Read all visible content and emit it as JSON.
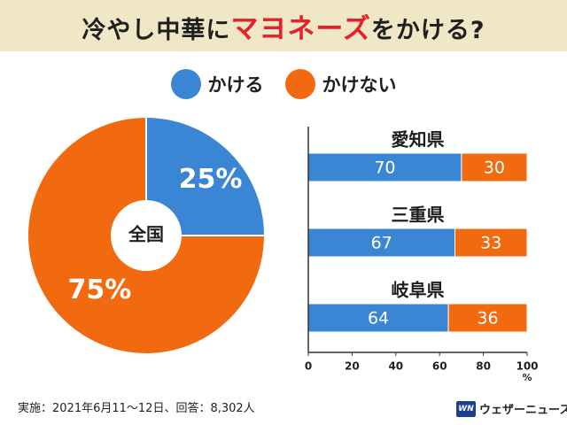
{
  "header": {
    "title_pre": "冷やし中華に",
    "title_highlight": "マヨネーズ",
    "title_post": "をかける?"
  },
  "legend": [
    {
      "label": "かける",
      "color": "#3a86d4"
    },
    {
      "label": "かけない",
      "color": "#f26a0f"
    }
  ],
  "footnote": "実施：2021年6月11〜12日、回答：8,302人",
  "brand": {
    "logo_text": "WN",
    "name": "ウェザーニュース"
  },
  "chart_data": [
    {
      "type": "pie",
      "center_label": "全国",
      "slices": [
        {
          "label": "かける",
          "value": 25,
          "display": "25%",
          "color": "#3a86d4"
        },
        {
          "label": "かけない",
          "value": 75,
          "display": "75%",
          "color": "#f26a0f"
        }
      ]
    },
    {
      "type": "bar",
      "orientation": "horizontal",
      "stacked": true,
      "categories": [
        "愛知県",
        "三重県",
        "岐阜県"
      ],
      "series": [
        {
          "name": "かける",
          "values": [
            70,
            67,
            64
          ],
          "color": "#3a86d4"
        },
        {
          "name": "かけない",
          "values": [
            30,
            33,
            36
          ],
          "color": "#f26a0f"
        }
      ],
      "xlim": [
        0,
        100
      ],
      "xticks": [
        "0",
        "20",
        "40",
        "60",
        "80",
        "100"
      ],
      "xunit": "%",
      "grid": false
    }
  ]
}
